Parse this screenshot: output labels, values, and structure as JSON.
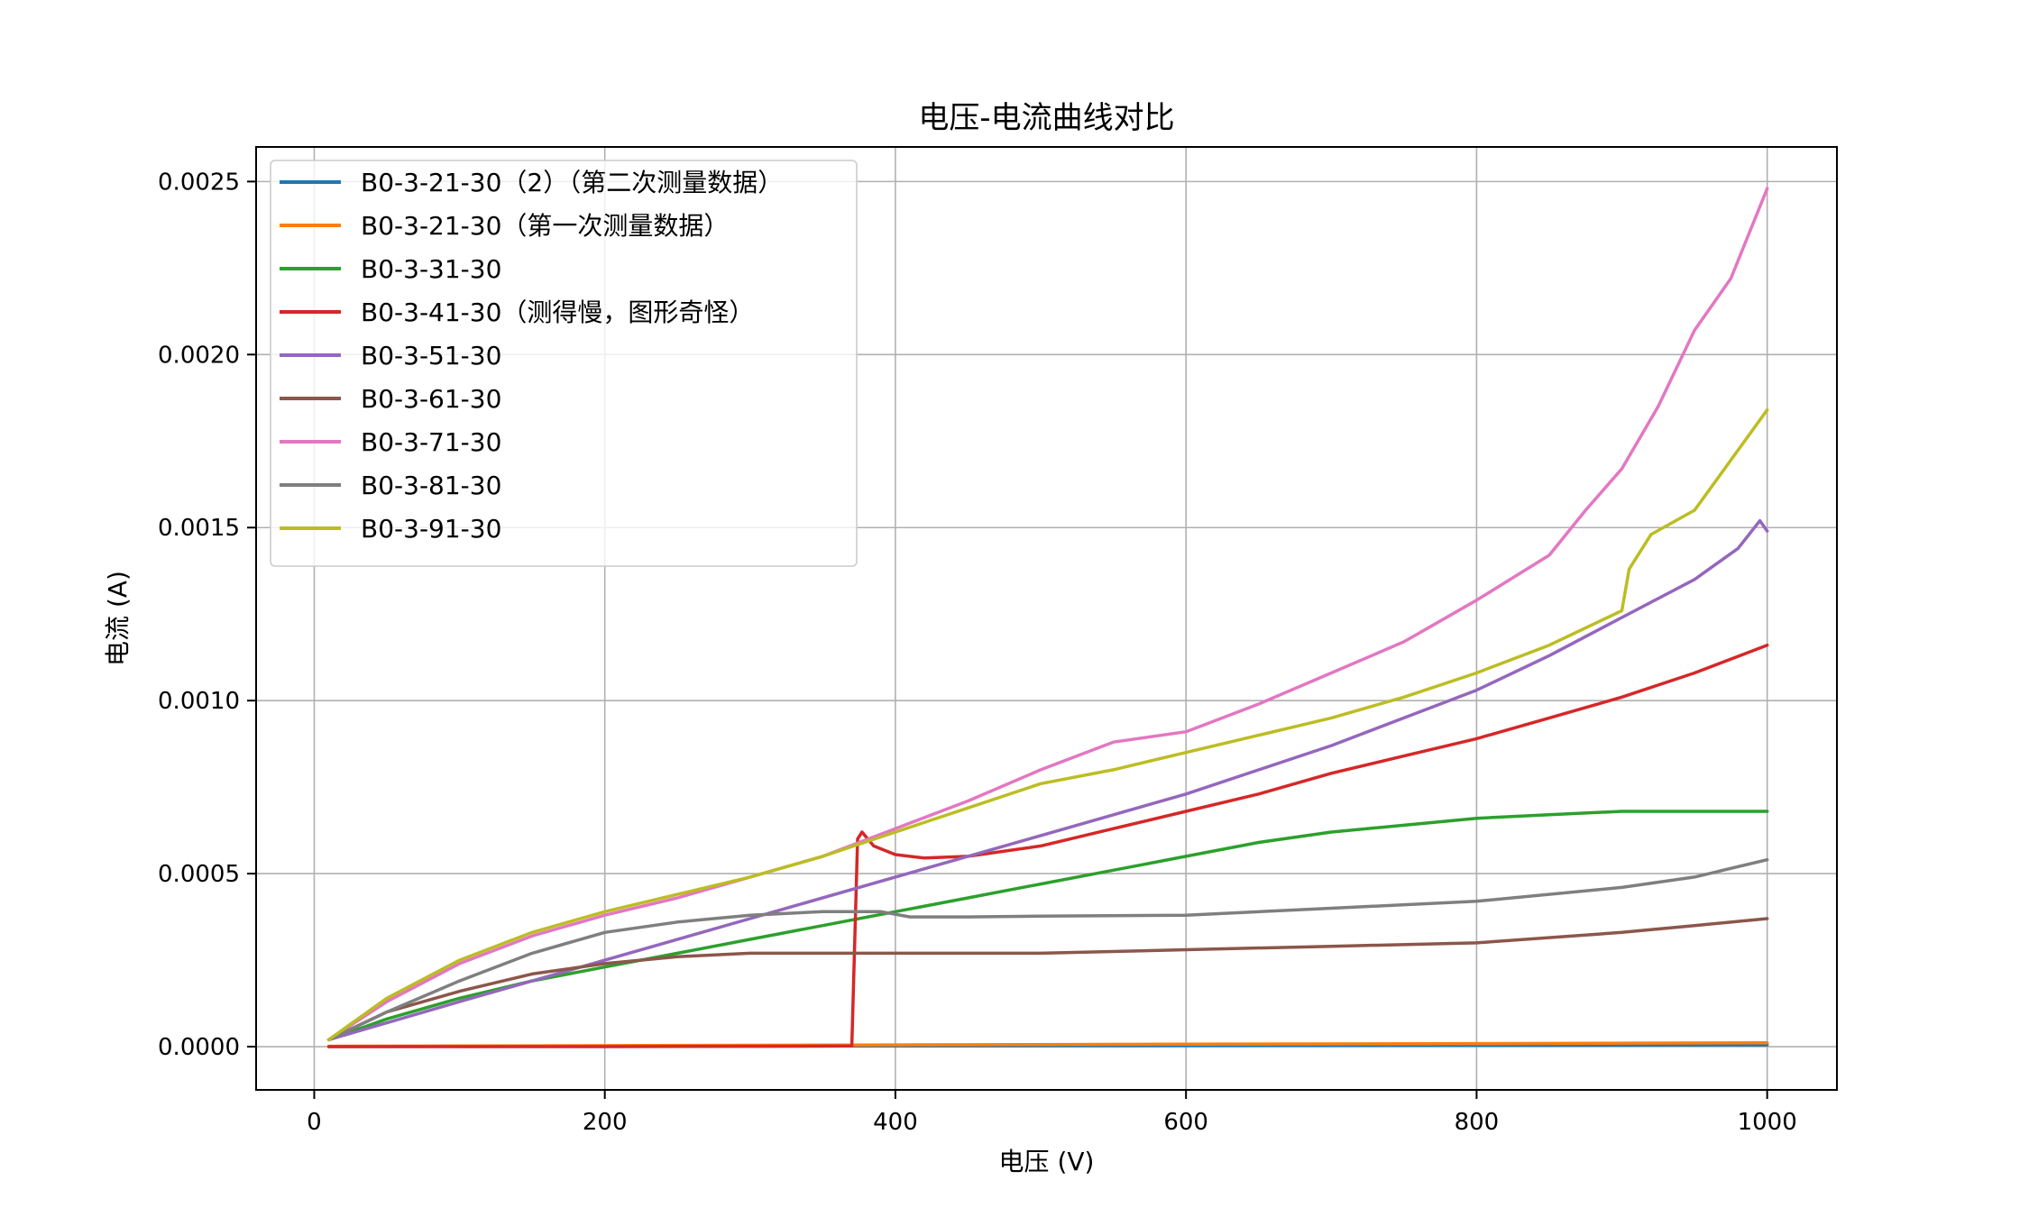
{
  "chart_data": {
    "type": "line",
    "title": "电压-电流曲线对比",
    "xlabel": "电压 (V)",
    "ylabel": "电流 (A)",
    "xlim": [
      -40,
      1048
    ],
    "ylim": [
      -0.000125,
      0.0026
    ],
    "xticks": [
      0,
      200,
      400,
      600,
      800,
      1000
    ],
    "xtick_labels": [
      "0",
      "200",
      "400",
      "600",
      "800",
      "1000"
    ],
    "yticks": [
      0,
      0.0005,
      0.001,
      0.0015,
      0.002,
      0.0025
    ],
    "ytick_labels": [
      "0.0000",
      "0.0005",
      "0.0010",
      "0.0015",
      "0.0020",
      "0.0025"
    ],
    "grid": true,
    "legend_position": "top-left",
    "series": [
      {
        "name": "B0-3-21-30（2）（第二次测量数据）",
        "color": "#1f77b4",
        "x": [
          10,
          200,
          400,
          600,
          800,
          1000
        ],
        "y": [
          0.0,
          1e-06,
          2e-06,
          3e-06,
          4e-06,
          5e-06
        ]
      },
      {
        "name": "B0-3-21-30（第一次测量数据）",
        "color": "#ff7f0e",
        "x": [
          10,
          200,
          400,
          600,
          800,
          1000
        ],
        "y": [
          1e-06,
          3e-06,
          5e-06,
          7e-06,
          9e-06,
          1.1e-05
        ]
      },
      {
        "name": "B0-3-31-30",
        "color": "#2ca02c",
        "x": [
          10,
          50,
          100,
          150,
          200,
          250,
          300,
          350,
          400,
          450,
          500,
          550,
          600,
          650,
          700,
          750,
          800,
          850,
          900,
          950,
          1000
        ],
        "y": [
          2e-05,
          8e-05,
          0.00014,
          0.00019,
          0.00023,
          0.00027,
          0.00031,
          0.00035,
          0.00039,
          0.00043,
          0.00047,
          0.00051,
          0.00055,
          0.00059,
          0.00062,
          0.00064,
          0.00066,
          0.00067,
          0.00068,
          0.00068,
          0.00068
        ]
      },
      {
        "name": "B0-3-41-30（测得慢，图形奇怪）",
        "color": "#d62728",
        "x": [
          10,
          100,
          200,
          300,
          370,
          374,
          377,
          385,
          400,
          420,
          450,
          500,
          550,
          600,
          650,
          700,
          750,
          800,
          850,
          900,
          950,
          1000
        ],
        "y": [
          0.0,
          0.0,
          0.0,
          1e-06,
          2e-06,
          0.0006,
          0.00062,
          0.00058,
          0.000555,
          0.000545,
          0.00055,
          0.00058,
          0.00063,
          0.00068,
          0.00073,
          0.00079,
          0.00084,
          0.00089,
          0.00095,
          0.00101,
          0.00108,
          0.00116
        ]
      },
      {
        "name": "B0-3-51-30",
        "color": "#9467bd",
        "x": [
          10,
          100,
          200,
          300,
          400,
          500,
          600,
          700,
          800,
          850,
          900,
          950,
          980,
          995,
          1000
        ],
        "y": [
          2e-05,
          0.00013,
          0.00025,
          0.00037,
          0.00049,
          0.00061,
          0.00073,
          0.00087,
          0.00103,
          0.00113,
          0.00124,
          0.00135,
          0.00144,
          0.00152,
          0.00149
        ]
      },
      {
        "name": "B0-3-61-30",
        "color": "#8c564b",
        "x": [
          10,
          50,
          100,
          150,
          200,
          250,
          300,
          350,
          400,
          500,
          600,
          700,
          800,
          900,
          950,
          1000
        ],
        "y": [
          2e-05,
          0.0001,
          0.00016,
          0.00021,
          0.00024,
          0.00026,
          0.00027,
          0.00027,
          0.00027,
          0.00027,
          0.00028,
          0.00029,
          0.0003,
          0.00033,
          0.00035,
          0.00037
        ]
      },
      {
        "name": "B0-3-71-30",
        "color": "#e377c2",
        "x": [
          10,
          50,
          100,
          150,
          200,
          250,
          300,
          350,
          400,
          450,
          500,
          550,
          600,
          650,
          700,
          750,
          800,
          850,
          875,
          900,
          925,
          950,
          975,
          1000
        ],
        "y": [
          2e-05,
          0.00013,
          0.00024,
          0.00032,
          0.00038,
          0.00043,
          0.00049,
          0.00055,
          0.00063,
          0.00071,
          0.0008,
          0.00088,
          0.00091,
          0.00099,
          0.00108,
          0.00117,
          0.00129,
          0.00142,
          0.00155,
          0.00167,
          0.00185,
          0.00207,
          0.00222,
          0.00248
        ]
      },
      {
        "name": "B0-3-81-30",
        "color": "#7f7f7f",
        "x": [
          10,
          50,
          100,
          150,
          200,
          250,
          300,
          350,
          390,
          410,
          450,
          500,
          600,
          700,
          800,
          900,
          950,
          1000
        ],
        "y": [
          2e-05,
          0.0001,
          0.00019,
          0.00027,
          0.00033,
          0.00036,
          0.00038,
          0.00039,
          0.00039,
          0.000375,
          0.000375,
          0.000377,
          0.00038,
          0.0004,
          0.00042,
          0.00046,
          0.00049,
          0.00054
        ]
      },
      {
        "name": "B0-3-91-30",
        "color": "#bcbd22",
        "x": [
          10,
          50,
          100,
          150,
          200,
          250,
          300,
          350,
          400,
          450,
          500,
          550,
          600,
          650,
          700,
          750,
          800,
          850,
          900,
          905,
          920,
          950,
          1000
        ],
        "y": [
          2e-05,
          0.00014,
          0.00025,
          0.00033,
          0.00039,
          0.00044,
          0.00049,
          0.00055,
          0.00062,
          0.00069,
          0.00076,
          0.0008,
          0.00085,
          0.0009,
          0.00095,
          0.00101,
          0.00108,
          0.00116,
          0.00126,
          0.00138,
          0.00148,
          0.00155,
          0.00184
        ]
      }
    ]
  }
}
